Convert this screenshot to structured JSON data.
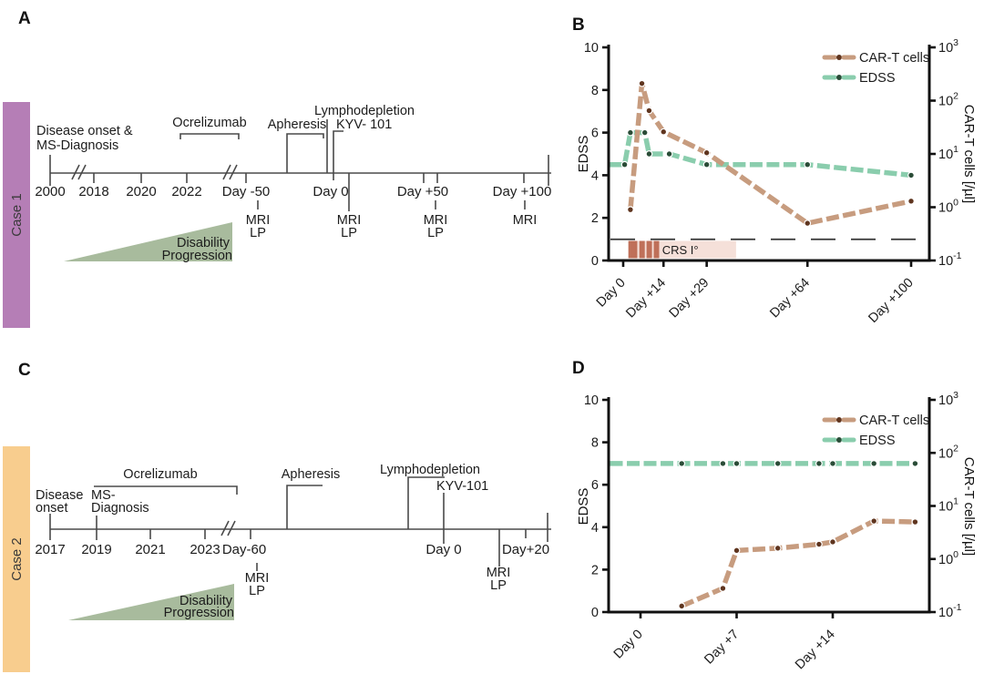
{
  "panels": {
    "a": {
      "letter": "A",
      "case": "Case 1",
      "case_color": "#b57eb6",
      "triangle_color": "#a8bb9d",
      "events": {
        "onset": [
          "Disease onset &",
          "MS-Diagnosis"
        ],
        "ocrelizumab": "Ocrelizumab",
        "apheresis": "Apheresis",
        "lymphodepletion": "Lymphodepletion",
        "kyv": "KYV- 101"
      },
      "ticks": [
        "2000",
        "2018",
        "2020",
        "2022",
        "Day -50",
        "Day 0",
        "Day +50",
        "Day +100"
      ],
      "scans": {
        "s0": [
          "MRI",
          "LP"
        ],
        "s1": [
          "MRI",
          "LP"
        ],
        "s2": [
          "MRI",
          "LP"
        ],
        "s3": [
          "MRI"
        ]
      },
      "progression": [
        "Disability",
        "Progression"
      ]
    },
    "c": {
      "letter": "C",
      "case": "Case 2",
      "case_color": "#f8cd8e",
      "triangle_color": "#a8bb9d",
      "events": {
        "onset": [
          "Disease",
          "onset"
        ],
        "diagnosis": [
          "MS-",
          "Diagnosis"
        ],
        "ocrelizumab": "Ocrelizumab",
        "apheresis": "Apheresis",
        "lymphodepletion": "Lymphodepletion",
        "kyv": "KYV-101"
      },
      "ticks": [
        "2017",
        "2019",
        "2021",
        "2023",
        "Day-60",
        "Day 0",
        "Day+20"
      ],
      "scans": {
        "s0": [
          "MRI",
          "LP"
        ],
        "s1": [
          "MRI",
          "LP"
        ]
      },
      "progression": [
        "Disability",
        "Progression"
      ]
    }
  },
  "chart_data": [
    {
      "panel": "B",
      "type": "line",
      "ylabel_left": "EDSS",
      "ylabel_right": "CAR-T cells [/µl]",
      "ylim_left": [
        0,
        10
      ],
      "ylim_right_log10": [
        -1,
        3
      ],
      "tick_label_rotation_deg": 45,
      "y_left_ticks": [
        "0",
        "2",
        "4",
        "6",
        "8",
        "10"
      ],
      "y_right_ticks": [
        {
          "b": "10",
          "e": "-1"
        },
        {
          "b": "10",
          "e": "0"
        },
        {
          "b": "10",
          "e": "1"
        },
        {
          "b": "10",
          "e": "2"
        },
        {
          "b": "10",
          "e": "3"
        }
      ],
      "x_tick_labels": [
        "Day 0",
        "Day +14",
        "Day +29",
        "Day +64",
        "Day +100"
      ],
      "x_tick_days": [
        0,
        14,
        29,
        64,
        100
      ],
      "series": [
        {
          "name": "CAR-T cells",
          "axis": "right",
          "color_line": "#c79c7f",
          "color_dot": "#5f351f",
          "days": [
            2.5,
            6.5,
            9,
            14,
            29,
            64,
            100
          ],
          "values_per_ul": [
            0.9,
            210,
            65,
            26,
            10.5,
            0.5,
            1.3
          ]
        },
        {
          "name": "EDSS",
          "axis": "left",
          "color_line": "#8acdad",
          "color_dot": "#2a4c37",
          "start_at_axis": true,
          "days": [
            0.5,
            2.5,
            7.5,
            9,
            16,
            29,
            64,
            100
          ],
          "values": [
            4.5,
            6,
            6,
            5,
            5,
            4.5,
            4.5,
            4
          ]
        }
      ],
      "dashed_line_per_ul": 0.25,
      "crs_band": {
        "label": "CRS I°",
        "fill": "#f5e0d9",
        "bar_color": "#bf7059",
        "days": [
          1.8,
          39.2
        ],
        "bar_days": [
          [
            1.8,
            4.9
          ],
          [
            5.6,
            7.5
          ],
          [
            8.1,
            10.0
          ],
          [
            10.6,
            12.5
          ]
        ]
      },
      "legend": [
        "CAR-T cells",
        "EDSS"
      ]
    },
    {
      "panel": "D",
      "type": "line",
      "ylabel_left": "EDSS",
      "ylabel_right": "CAR-T cells [/µl]",
      "ylim_left": [
        0,
        10
      ],
      "ylim_right_log10": [
        -1,
        3
      ],
      "tick_label_rotation_deg": 45,
      "y_left_ticks": [
        "0",
        "2",
        "4",
        "6",
        "8",
        "10"
      ],
      "y_right_ticks": [
        {
          "b": "10",
          "e": "-1"
        },
        {
          "b": "10",
          "e": "0"
        },
        {
          "b": "10",
          "e": "1"
        },
        {
          "b": "10",
          "e": "2"
        },
        {
          "b": "10",
          "e": "3"
        }
      ],
      "x_tick_labels": [
        "Day 0",
        "Day +7",
        "Day +14"
      ],
      "x_tick_days": [
        0,
        7,
        14
      ],
      "series": [
        {
          "name": "CAR-T cells",
          "axis": "right",
          "color_line": "#c79c7f",
          "color_dot": "#5f351f",
          "days": [
            3,
            6,
            7,
            10,
            13,
            14,
            17,
            20
          ],
          "values_per_ul": [
            0.13,
            0.28,
            1.45,
            1.6,
            1.9,
            2.1,
            5.2,
            5.0
          ]
        },
        {
          "name": "EDSS",
          "axis": "left",
          "color_line": "#8acdad",
          "color_dot": "#2a4c37",
          "start_at_axis": true,
          "days": [
            3,
            6,
            7,
            10,
            13,
            14,
            17,
            20
          ],
          "values": [
            7,
            7,
            7,
            7,
            7,
            7,
            7,
            7
          ]
        }
      ],
      "legend": [
        "CAR-T cells",
        "EDSS"
      ]
    }
  ]
}
